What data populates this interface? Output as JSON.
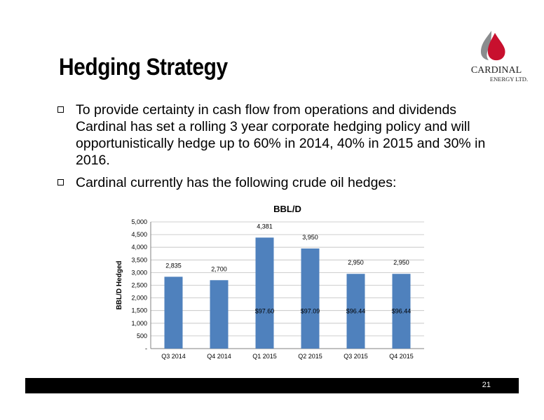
{
  "slide": {
    "title": "Hedging Strategy",
    "bullets": [
      "To provide certainty in cash flow from operations and dividends Cardinal has set a rolling 3 year corporate hedging policy and will opportunistically hedge up to 60% in 2014, 40% in 2015 and 30% in 2016.",
      "Cardinal currently has the following crude oil hedges:"
    ],
    "page_number": "21"
  },
  "logo": {
    "name": "CARDINAL",
    "subtitle": "ENERGY LTD.",
    "colors": {
      "flame_red": "#c8102e",
      "flame_grey": "#8a8c8e"
    }
  },
  "chart_data": {
    "type": "bar",
    "title": "BBL/D",
    "xlabel": "",
    "ylabel": "BBL/D Hedged",
    "categories": [
      "Q3 2014",
      "Q4 2014",
      "Q1 2015",
      "Q2 2015",
      "Q3 2015",
      "Q4 2015"
    ],
    "values": [
      2835,
      2700,
      4381,
      3950,
      2950,
      2950
    ],
    "value_labels": [
      "2,835",
      "2,700",
      "4,381",
      "3,950",
      "2,950",
      "2,950"
    ],
    "price_labels": [
      "",
      "",
      "$97.60",
      "$97.09",
      "$96.44",
      "$96.44"
    ],
    "ylim": [
      0,
      5000
    ],
    "yticks": [
      0,
      500,
      1000,
      1500,
      2000,
      2500,
      3000,
      3500,
      4000,
      4500,
      5000
    ],
    "ytick_labels": [
      "-",
      "500",
      "1,000",
      "1,500",
      "2,000",
      "2,500",
      "3,000",
      "3,500",
      "4,000",
      "4,500",
      "5,000"
    ],
    "grid": true,
    "legend": "none",
    "bar_color": "#4f81bd"
  }
}
